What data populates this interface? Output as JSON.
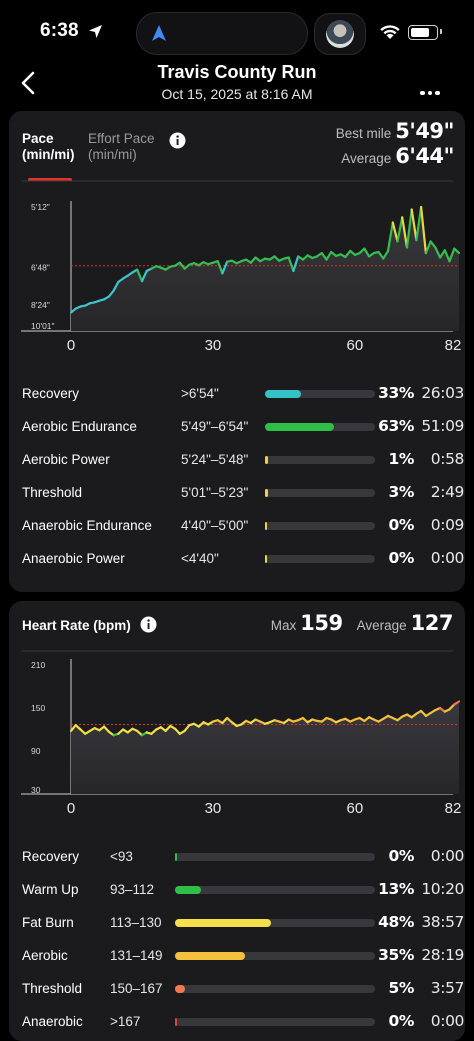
{
  "status_bar": {
    "time": "6:38",
    "battery_level": 0.8
  },
  "header": {
    "title": "Travis County Run",
    "subtitle": "Oct 15, 2025 at 8:16 AM"
  },
  "pace_card": {
    "tabs": [
      {
        "label": "Pace\n(min/mi)",
        "active": true
      },
      {
        "label": "Effort Pace\n(min/mi)",
        "active": false
      }
    ],
    "best_mile_label": "Best mile",
    "best_mile_value": "5'49\"",
    "average_label": "Average",
    "average_value": "6'44\"",
    "zones": [
      {
        "name": "Recovery",
        "range": ">6'54\"",
        "percent": "33%",
        "time": "26:03",
        "fill": 0.33,
        "color": "#35c2c6"
      },
      {
        "name": "Aerobic Endurance",
        "range": "5'49\"–6'54\"",
        "percent": "63%",
        "time": "51:09",
        "fill": 0.63,
        "color": "#2fbf48"
      },
      {
        "name": "Aerobic Power",
        "range": "5'24\"–5'48\"",
        "percent": "1%",
        "time": "0:58",
        "fill": 0.01,
        "color": "#f2d13b"
      },
      {
        "name": "Threshold",
        "range": "5'01\"–5'23\"",
        "percent": "3%",
        "time": "2:49",
        "fill": 0.03,
        "color": "#f2d13b"
      },
      {
        "name": "Anaerobic Endurance",
        "range": "4'40\"–5'00\"",
        "percent": "0%",
        "time": "0:09",
        "fill": 0.0,
        "color": "#f2d13b"
      },
      {
        "name": "Anaerobic Power",
        "range": "<4'40\"",
        "percent": "0%",
        "time": "0:00",
        "fill": 0.0,
        "color": "#f2d13b"
      }
    ]
  },
  "hr_card": {
    "title": "Heart Rate (bpm)",
    "max_label": "Max",
    "max_value": "159",
    "average_label": "Average",
    "average_value": "127",
    "zones": [
      {
        "name": "Recovery",
        "range": "<93",
        "percent": "0%",
        "time": "0:00",
        "fill": 0.0,
        "color": "#2fbf48"
      },
      {
        "name": "Warm Up",
        "range": "93–112",
        "percent": "13%",
        "time": "10:20",
        "fill": 0.13,
        "color": "#2fbf48"
      },
      {
        "name": "Fat Burn",
        "range": "113–130",
        "percent": "48%",
        "time": "38:57",
        "fill": 0.48,
        "color": "#f6e04a"
      },
      {
        "name": "Aerobic",
        "range": "131–149",
        "percent": "35%",
        "time": "28:19",
        "fill": 0.35,
        "color": "#f5c13d"
      },
      {
        "name": "Threshold",
        "range": "150–167",
        "percent": "5%",
        "time": "3:57",
        "fill": 0.05,
        "color": "#ef7a52"
      },
      {
        "name": "Anaerobic",
        "range": ">167",
        "percent": "0%",
        "time": "0:00",
        "fill": 0.0,
        "color": "#e5413a"
      }
    ]
  },
  "chart_data": [
    {
      "type": "line",
      "xlabel": "",
      "ylabel": "",
      "x_ticks": [
        "0",
        "30",
        "60",
        "82"
      ],
      "xlim": [
        0,
        82
      ],
      "y_ticks": [
        "5'12\"",
        "6'48\"",
        "8'24\"",
        "10'01\""
      ],
      "ylim_seconds_per_mile": [
        601,
        312
      ],
      "y_scale": "reciprocal (speed)",
      "average_line_seconds": 404,
      "average_line_color": "#e0332a",
      "series": [
        {
          "x": [
            0,
            1,
            2,
            3,
            4,
            5,
            6,
            7,
            8,
            9,
            10,
            11,
            12,
            13,
            14,
            15,
            16,
            17,
            18,
            19,
            20,
            21,
            22,
            23,
            24,
            25,
            26,
            27,
            28,
            29,
            30,
            31,
            32,
            33,
            34,
            35,
            36,
            37,
            38,
            39,
            40,
            41,
            42,
            43,
            44,
            45,
            46,
            47,
            48,
            49,
            50,
            51,
            52,
            53,
            54,
            55,
            56,
            57,
            58,
            59,
            60,
            61,
            62,
            63,
            64,
            65,
            66,
            67,
            68,
            69,
            70,
            71,
            72,
            73,
            74,
            75,
            76,
            77,
            78,
            79,
            80,
            81,
            82
          ],
          "y": [
            528,
            515,
            508,
            505,
            498,
            495,
            490,
            486,
            478,
            462,
            440,
            432,
            425,
            418,
            412,
            438,
            415,
            410,
            405,
            408,
            412,
            406,
            404,
            398,
            410,
            402,
            399,
            403,
            397,
            401,
            398,
            395,
            420,
            396,
            394,
            399,
            395,
            392,
            398,
            388,
            395,
            390,
            392,
            386,
            394,
            390,
            388,
            415,
            386,
            392,
            384,
            389,
            386,
            380,
            392,
            378,
            385,
            382,
            387,
            376,
            383,
            380,
            372,
            386,
            380,
            378,
            390,
            376,
            332,
            360,
            325,
            370,
            315,
            358,
            312,
            380,
            360,
            370,
            388,
            375,
            395,
            372,
            380
          ]
        }
      ]
    },
    {
      "type": "line",
      "xlabel": "",
      "ylabel": "",
      "x_ticks": [
        "0",
        "30",
        "60",
        "82"
      ],
      "xlim": [
        0,
        82
      ],
      "y_ticks": [
        "210",
        "150",
        "90",
        "30"
      ],
      "ylim": [
        30,
        210
      ],
      "average_line_value": 127,
      "average_line_color": "#e0332a",
      "series": [
        {
          "x": [
            0,
            1,
            2,
            3,
            4,
            5,
            6,
            7,
            8,
            9,
            10,
            11,
            12,
            13,
            14,
            15,
            16,
            17,
            18,
            19,
            20,
            21,
            22,
            23,
            24,
            25,
            26,
            27,
            28,
            29,
            30,
            31,
            32,
            33,
            34,
            35,
            36,
            37,
            38,
            39,
            40,
            41,
            42,
            43,
            44,
            45,
            46,
            47,
            48,
            49,
            50,
            51,
            52,
            53,
            54,
            55,
            56,
            57,
            58,
            59,
            60,
            61,
            62,
            63,
            64,
            65,
            66,
            67,
            68,
            69,
            70,
            71,
            72,
            73,
            74,
            75,
            76,
            77,
            78,
            79,
            80,
            81,
            82
          ],
          "y": [
            118,
            126,
            120,
            114,
            118,
            122,
            119,
            124,
            117,
            112,
            114,
            120,
            116,
            121,
            118,
            112,
            116,
            114,
            120,
            123,
            118,
            125,
            121,
            114,
            118,
            126,
            128,
            124,
            130,
            127,
            131,
            133,
            129,
            136,
            130,
            125,
            127,
            132,
            129,
            134,
            131,
            128,
            130,
            133,
            131,
            129,
            134,
            131,
            133,
            136,
            130,
            134,
            132,
            131,
            136,
            134,
            130,
            133,
            135,
            131,
            134,
            136,
            132,
            137,
            134,
            131,
            135,
            139,
            136,
            133,
            138,
            141,
            137,
            142,
            146,
            139,
            143,
            147,
            150,
            145,
            148,
            155,
            159
          ]
        }
      ]
    }
  ]
}
